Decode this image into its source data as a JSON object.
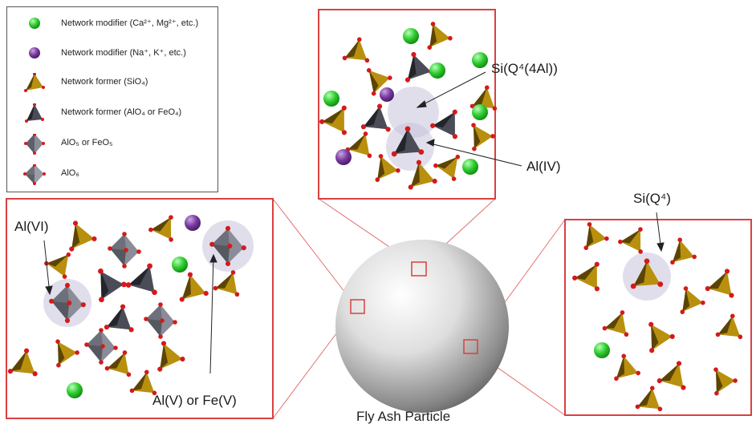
{
  "legend": {
    "items": [
      {
        "icon": "green-sphere-icon",
        "label": "Network modifier (Ca²⁺, Mg²⁺, etc.)"
      },
      {
        "icon": "purple-sphere-icon",
        "label": "Network modifier (Na⁺, K⁺, etc.)"
      },
      {
        "icon": "gold-tetrahedron-icon",
        "label": "Network former (SiO₄)"
      },
      {
        "icon": "dark-tetrahedron-icon",
        "label": "Network former (AlO₄ or FeO₄)"
      },
      {
        "icon": "gray-bipyramid-icon",
        "label": "AlO₅ or FeO₅"
      },
      {
        "icon": "gray-octahedron-icon",
        "label": "AlO₆"
      }
    ]
  },
  "annotations": {
    "top_si": "Si(Q⁴(4Al))",
    "top_al": "Al(IV)",
    "left_al_vi": "Al(VI)",
    "left_al_v": "Al(V) or Fe(V)",
    "right_si": "Si(Q⁴)"
  },
  "caption": "Fly Ash Particle",
  "colors": {
    "frame": "#d94040",
    "silicate": "#b8900e",
    "silicate_dark": "#5c4406",
    "aluminate": "#4a4d57",
    "aluminate_light": "#8a8d97",
    "oxygen": "#d41a1a",
    "calcium": "#2ecc2e",
    "sodium": "#7a3aa0",
    "halo": "#c9c3dd"
  }
}
